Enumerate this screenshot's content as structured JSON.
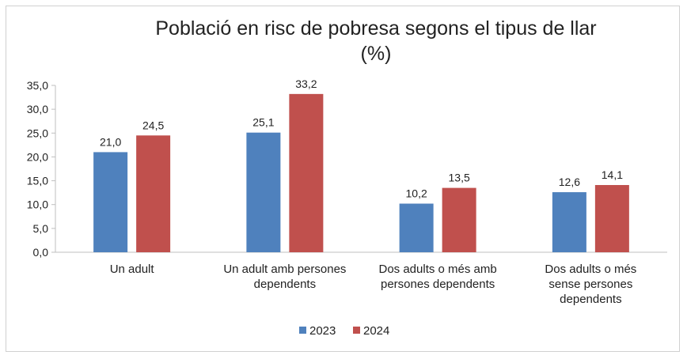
{
  "chart_data": {
    "type": "bar",
    "title_lines": [
      "Població en risc de pobresa segons el tipus de llar",
      "(%)"
    ],
    "categories": [
      [
        "Un adult"
      ],
      [
        "Un adult amb persones",
        "dependents"
      ],
      [
        "Dos adults o més amb",
        "persones dependents"
      ],
      [
        "Dos adults o més",
        "sense persones",
        "dependents"
      ]
    ],
    "series": [
      {
        "name": "2023",
        "color": "#4f81bd",
        "values": [
          21.0,
          25.1,
          10.2,
          12.6
        ],
        "labels": [
          "21,0",
          "25,1",
          "10,2",
          "12,6"
        ]
      },
      {
        "name": "2024",
        "color": "#c0504d",
        "values": [
          24.5,
          33.2,
          13.5,
          14.1
        ],
        "labels": [
          "24,5",
          "33,2",
          "13,5",
          "14,1"
        ]
      }
    ],
    "ylim": [
      0,
      35
    ],
    "yticks": [
      0,
      5,
      10,
      15,
      20,
      25,
      30,
      35
    ],
    "ytick_labels": [
      "0,0",
      "5,0",
      "10,0",
      "15,0",
      "20,0",
      "25,0",
      "30,0",
      "35,0"
    ],
    "grid": false,
    "legend_position": "bottom"
  }
}
